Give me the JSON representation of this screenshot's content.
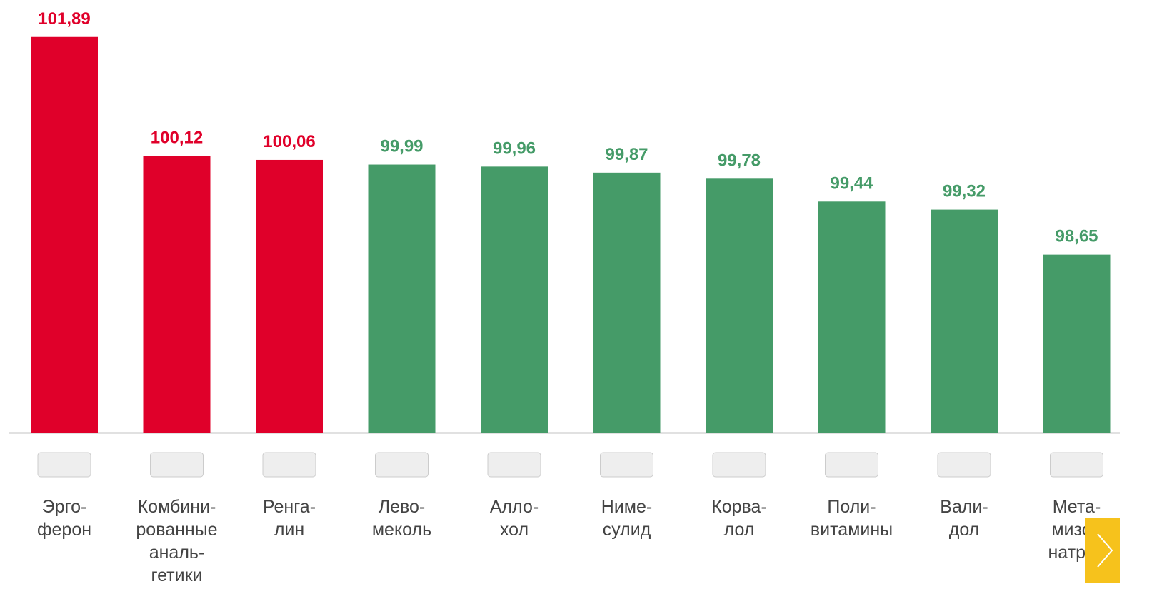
{
  "chart_data": {
    "type": "bar",
    "categories": [
      "Эрго-\nферон",
      "Комбини-\nрованные\nаналь-\nгетики",
      "Ренга-\nлин",
      "Лево-\nмеколь",
      "Алло-\nхол",
      "Ниме-\nсулид",
      "Корва-\nлол",
      "Поли-\nвитамины",
      "Вали-\nдол",
      "Мета-\nмизол\nнатрия"
    ],
    "values": [
      101.89,
      100.12,
      100.06,
      99.99,
      99.96,
      99.87,
      99.78,
      99.44,
      99.32,
      98.65
    ],
    "value_labels": [
      "101,89",
      "100,12",
      "100,06",
      "99,99",
      "99,96",
      "99,87",
      "99,78",
      "99,44",
      "99,32",
      "98,65"
    ],
    "colors": [
      "#e0002a",
      "#e0002a",
      "#e0002a",
      "#459b68",
      "#459b68",
      "#459b68",
      "#459b68",
      "#459b68",
      "#459b68",
      "#459b68"
    ],
    "ylim": [
      96,
      102
    ]
  }
}
